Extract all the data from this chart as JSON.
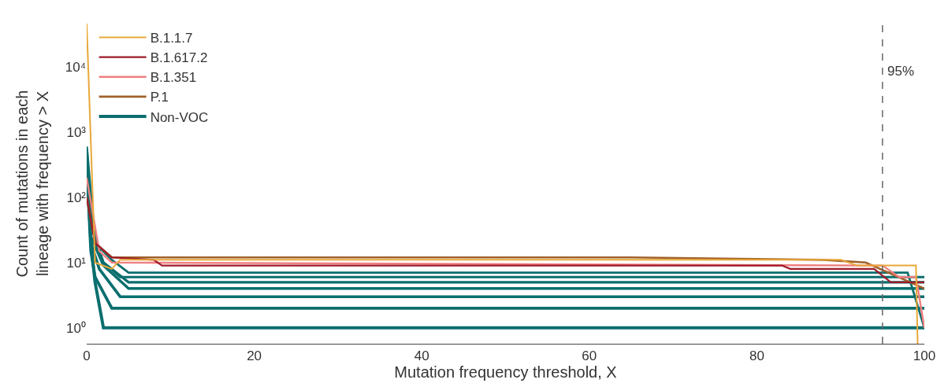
{
  "chart_data": {
    "type": "line",
    "xlabel": "Mutation frequency threshold, X",
    "ylabel": "Count of mutations in each\nlineage with frequency > X",
    "xlim": [
      0,
      100
    ],
    "xticks": [
      0,
      20,
      40,
      60,
      80,
      100
    ],
    "ylim": [
      0.57,
      46000
    ],
    "log": "y",
    "yticks": [
      {
        "value": 1,
        "label": "10⁰"
      },
      {
        "value": 10,
        "label": "10¹"
      },
      {
        "value": 100,
        "label": "10²"
      },
      {
        "value": 1000,
        "label": "10³"
      },
      {
        "value": 10000,
        "label": "10⁴"
      }
    ],
    "legend": "top left",
    "marker": "none",
    "line_style": "solid",
    "ref_lines": [
      {
        "axis": "x",
        "value": 95,
        "label": "95%",
        "color": "#666666",
        "line_style": "dashed"
      }
    ],
    "series": [
      {
        "name": "Non-VOC",
        "color": "#0b6e6e",
        "x": [
          0,
          0.5,
          1,
          2,
          100
        ],
        "values": [
          500,
          20,
          5,
          1,
          1
        ]
      },
      {
        "color": "#0b6e6e",
        "x": [
          0,
          0.5,
          1,
          3,
          100
        ],
        "values": [
          300,
          15,
          6,
          2,
          2
        ]
      },
      {
        "color": "#0b6e6e",
        "x": [
          0,
          0.5,
          1.5,
          4,
          100
        ],
        "values": [
          400,
          20,
          8,
          3,
          3
        ]
      },
      {
        "color": "#0b6e6e",
        "x": [
          0,
          0.5,
          2,
          5,
          100
        ],
        "values": [
          200,
          25,
          9,
          4,
          4
        ]
      },
      {
        "color": "#0b6e6e",
        "x": [
          0,
          1,
          2,
          5,
          100
        ],
        "values": [
          600,
          20,
          10,
          5,
          5
        ]
      },
      {
        "color": "#0b6e6e",
        "x": [
          0,
          1,
          2,
          4,
          100
        ],
        "values": [
          300,
          25,
          10,
          6,
          6
        ]
      },
      {
        "color": "#0b6e6e",
        "x": [
          0,
          1,
          3,
          5,
          98,
          100
        ],
        "values": [
          400,
          20,
          11,
          7,
          7,
          1
        ]
      },
      {
        "name": "P.1",
        "color": "#a0612a",
        "x": [
          0,
          1,
          3,
          65,
          88,
          93,
          100
        ],
        "values": [
          100,
          20,
          12,
          12,
          11,
          10,
          4
        ]
      },
      {
        "name": "B.1.351",
        "color": "#f08080",
        "x": [
          0,
          1.5,
          3,
          95,
          97,
          99,
          100
        ],
        "values": [
          200,
          15,
          10,
          9,
          6,
          6,
          1
        ]
      },
      {
        "name": "B.1.617.2",
        "color": "#9e1b2a",
        "x": [
          0,
          1,
          3,
          8,
          9,
          83,
          84,
          94,
          96,
          100
        ],
        "values": [
          100,
          20,
          12,
          11,
          9,
          9,
          8,
          8,
          5,
          5
        ]
      },
      {
        "name": "B.1.1.7",
        "color": "#e8a838",
        "x": [
          0,
          1,
          3,
          4,
          90,
          92,
          99,
          99.2
        ],
        "values": [
          46000,
          10,
          8,
          11,
          11,
          9,
          9,
          0.57
        ]
      }
    ]
  }
}
